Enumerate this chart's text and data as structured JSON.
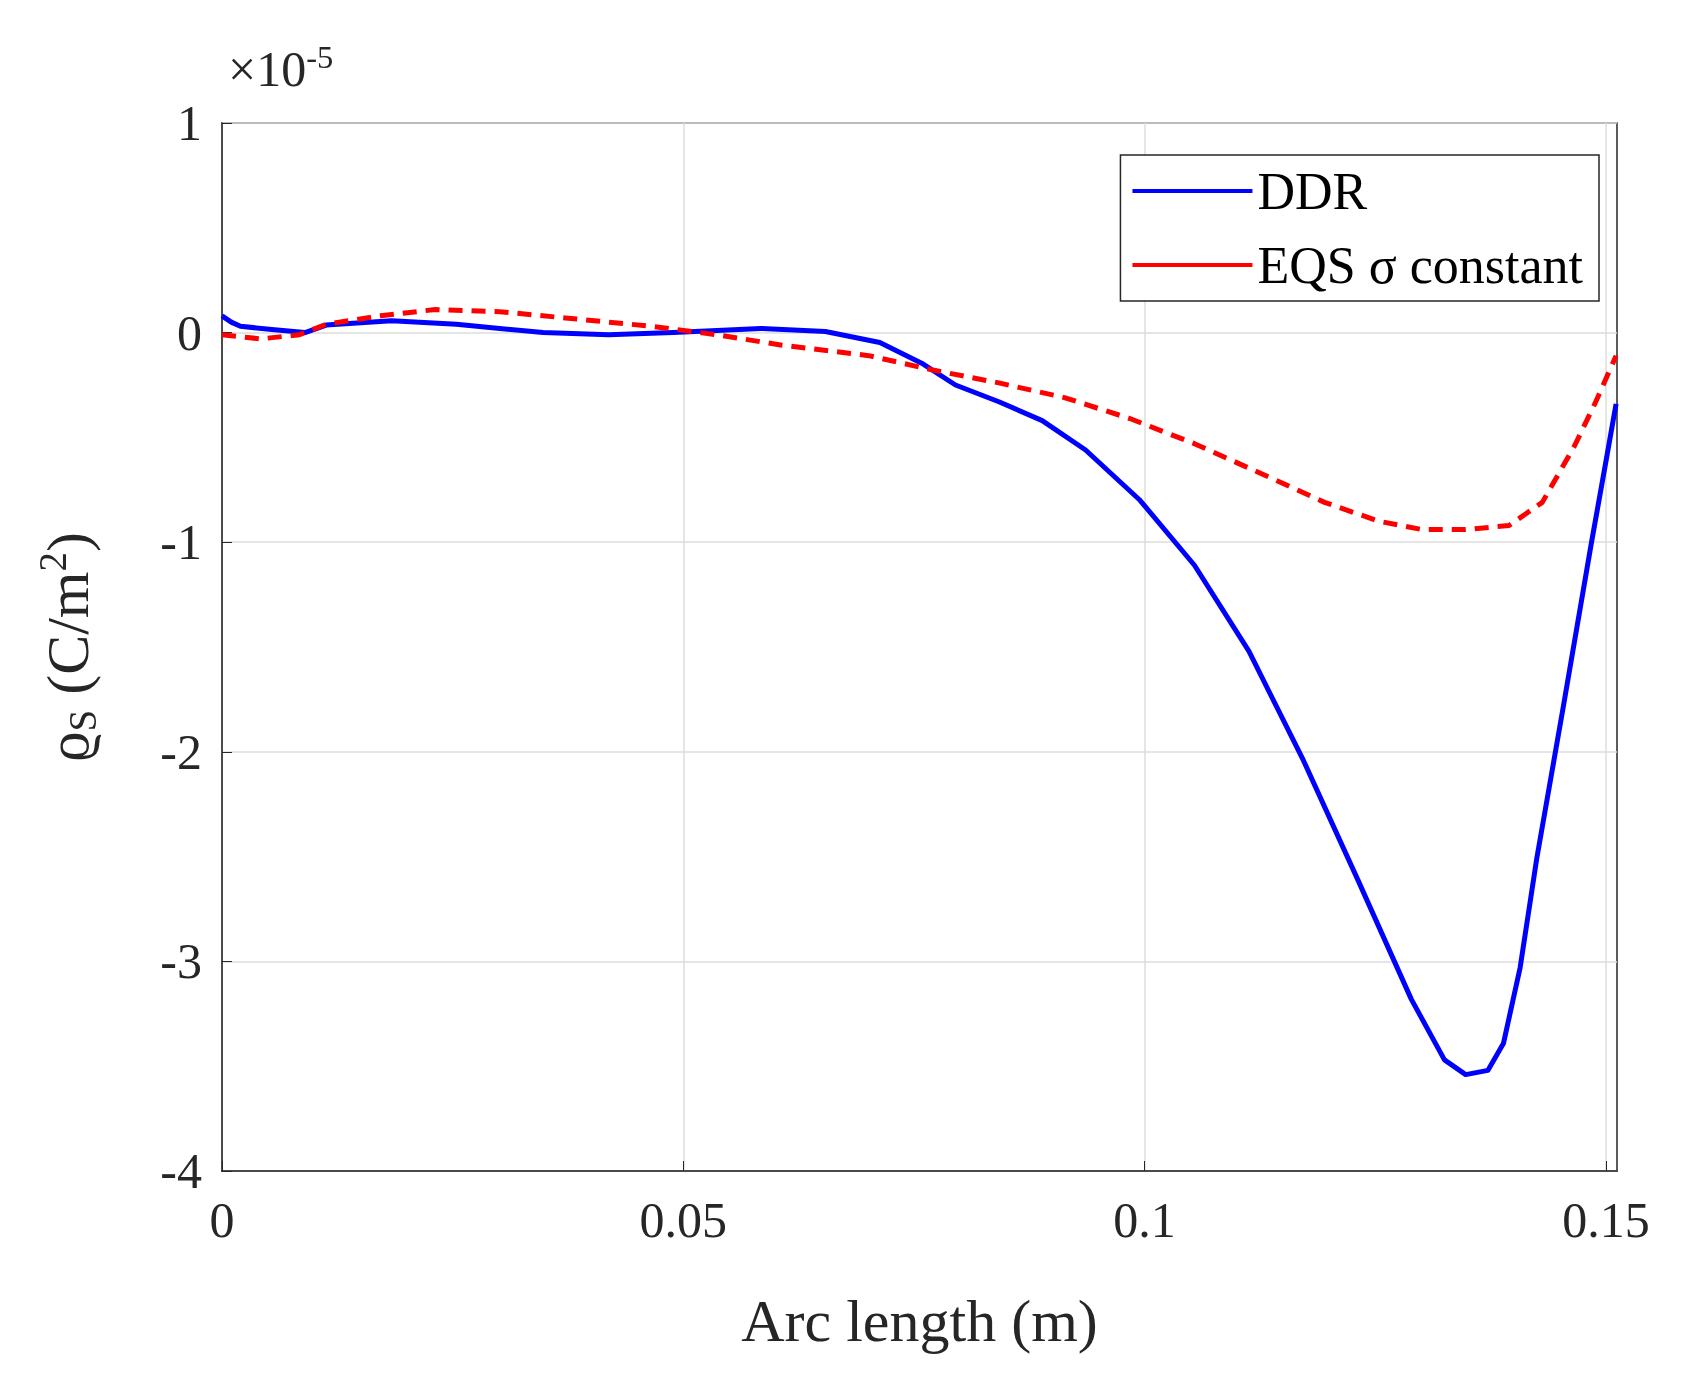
{
  "chart_data": {
    "type": "line",
    "xlabel": "Arc length (m)",
    "ylabel": "ϱ$_{S}$ (C/m$^{2}$)",
    "annotations": [
      "×10$^{-5}$"
    ],
    "xlim": [
      0,
      0.1512
    ],
    "xticks": [
      0,
      0.05,
      0.1,
      0.15
    ],
    "ylim": [
      -4,
      1
    ],
    "yticks": [
      -4,
      -3,
      -2,
      -1,
      0,
      1
    ],
    "grid": true,
    "legend": "top right",
    "marker": "none",
    "series": [
      {
        "name": "DDR",
        "color": "#0000ff",
        "line_style": "solid",
        "x": [
          0,
          0.001,
          0.002,
          0.0054,
          0.009,
          0.0113,
          0.0184,
          0.0254,
          0.0348,
          0.0419,
          0.0489,
          0.0584,
          0.0654,
          0.0713,
          0.076,
          0.0795,
          0.0842,
          0.0889,
          0.0936,
          0.0995,
          0.1054,
          0.1113,
          0.1172,
          0.1231,
          0.1289,
          0.1325,
          0.1348,
          0.1372,
          0.1389,
          0.1407,
          0.1425,
          0.1454,
          0.1484,
          0.1501,
          0.1511
        ],
        "values": [
          0.08,
          0.05,
          0.03,
          0.015,
          0,
          0.036,
          0.057,
          0.04,
          0,
          -0.01,
          0,
          0.02,
          0.005,
          -0.047,
          -0.15,
          -0.25,
          -0.33,
          -0.42,
          -0.56,
          -0.8,
          -1.11,
          -1.52,
          -2.04,
          -2.61,
          -3.18,
          -3.47,
          -3.54,
          -3.52,
          -3.39,
          -3.03,
          -2.51,
          -1.78,
          -1.01,
          -0.59,
          -0.34
        ]
      },
      {
        "name": "EQS σ constant",
        "color": "#ff0000",
        "line_style": "dashed",
        "x": [
          0,
          0.0042,
          0.0084,
          0.0113,
          0.0172,
          0.0231,
          0.0301,
          0.0372,
          0.0466,
          0.0536,
          0.0607,
          0.0701,
          0.0772,
          0.0842,
          0.0913,
          0.0984,
          0.1054,
          0.1125,
          0.1195,
          0.1254,
          0.1301,
          0.1348,
          0.1395,
          0.1431,
          0.1466,
          0.1489,
          0.1511
        ],
        "values": [
          -0.01,
          -0.03,
          -0.01,
          0.04,
          0.08,
          0.11,
          0.1,
          0.07,
          0.03,
          -0.01,
          -0.06,
          -0.11,
          -0.18,
          -0.24,
          -0.31,
          -0.41,
          -0.53,
          -0.67,
          -0.81,
          -0.9,
          -0.94,
          -0.94,
          -0.92,
          -0.81,
          -0.54,
          -0.33,
          -0.11
        ]
      }
    ]
  }
}
